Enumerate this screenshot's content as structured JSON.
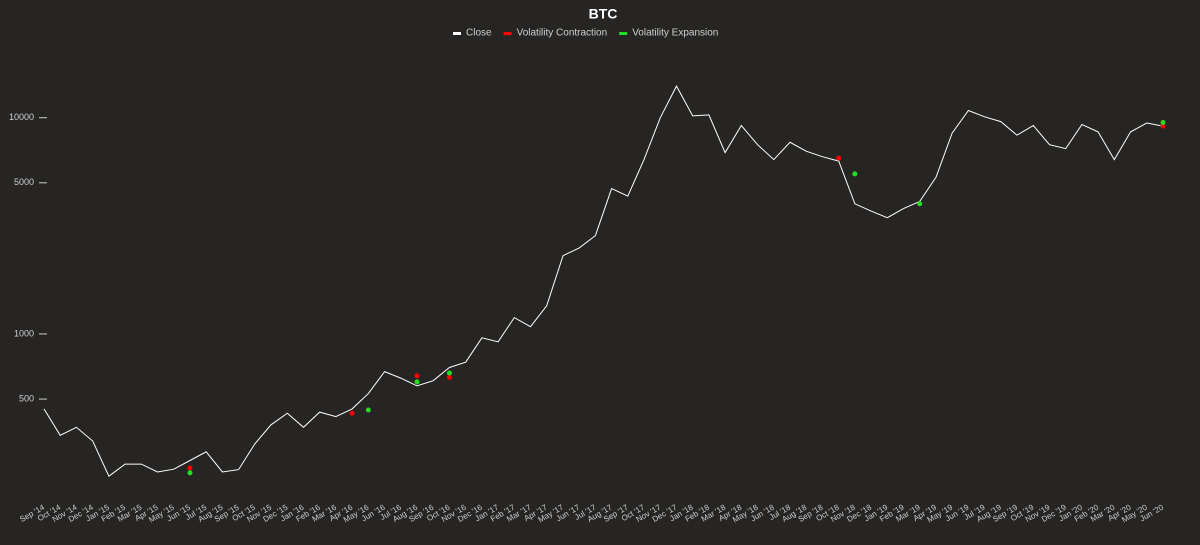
{
  "chart_data": {
    "type": "line",
    "title": "BTC",
    "yscale": "log",
    "ylim": [
      180,
      19500
    ],
    "yticks": [
      500,
      1000,
      5000,
      10000
    ],
    "legend": "top",
    "categories": [
      "Sep '14",
      "Oct '14",
      "Nov '14",
      "Dec '14",
      "Jan '15",
      "Feb '15",
      "Mar '15",
      "Apr '15",
      "May '15",
      "Jun '15",
      "Jul '15",
      "Aug '15",
      "Sep '15",
      "Oct '15",
      "Nov '15",
      "Dec '15",
      "Jan '16",
      "Feb '16",
      "Mar '16",
      "Apr '16",
      "May '16",
      "Jun '16",
      "Jul '16",
      "Aug '16",
      "Sep '16",
      "Oct '16",
      "Nov '16",
      "Dec '16",
      "Jan '17",
      "Feb '17",
      "Mar '17",
      "Apr '17",
      "May '17",
      "Jun '17",
      "Jul '17",
      "Aug '17",
      "Sep '17",
      "Oct '17",
      "Nov '17",
      "Dec '17",
      "Jan '18",
      "Feb '18",
      "Mar '18",
      "Apr '18",
      "May '18",
      "Jun '18",
      "Jul '18",
      "Aug '18",
      "Sep '18",
      "Oct '18",
      "Nov '18",
      "Dec '18",
      "Jan '19",
      "Feb '19",
      "Mar '19",
      "Apr '19",
      "May '19",
      "Jun '19",
      "Jul '19",
      "Aug '19",
      "Sep '19",
      "Oct '19",
      "Nov '19",
      "Dec '19",
      "Jan '20",
      "Feb '20",
      "Mar '20",
      "Apr '20",
      "May '20",
      "Jun '20"
    ],
    "series": [
      {
        "name": "Close",
        "color": "#ffffff",
        "style": "line",
        "values": [
          450,
          340,
          370,
          320,
          220,
          250,
          250,
          230,
          237,
          260,
          285,
          230,
          236,
          310,
          380,
          430,
          370,
          435,
          415,
          450,
          530,
          670,
          625,
          575,
          608,
          700,
          740,
          960,
          920,
          1190,
          1080,
          1350,
          2300,
          2500,
          2850,
          4700,
          4340,
          6400,
          10000,
          14000,
          10200,
          10300,
          6900,
          9200,
          7500,
          6400,
          7700,
          7000,
          6600,
          6300,
          4000,
          3700,
          3450,
          3800,
          4100,
          5300,
          8500,
          10800,
          10100,
          9600,
          8300,
          9200,
          7500,
          7200,
          9300,
          8600,
          6400,
          8600,
          9450,
          9150
        ]
      },
      {
        "name": "Volatility Contraction",
        "color": "#ff0000",
        "style": "markers",
        "values": [
          null,
          null,
          null,
          null,
          null,
          null,
          null,
          null,
          null,
          240,
          null,
          null,
          null,
          null,
          null,
          null,
          null,
          null,
          null,
          430,
          null,
          null,
          null,
          640,
          null,
          630,
          null,
          null,
          null,
          null,
          null,
          null,
          null,
          null,
          null,
          null,
          null,
          null,
          null,
          null,
          null,
          null,
          null,
          null,
          null,
          null,
          null,
          null,
          null,
          6500,
          null,
          null,
          null,
          null,
          null,
          null,
          null,
          null,
          null,
          null,
          null,
          null,
          null,
          null,
          null,
          null,
          null,
          null,
          null,
          9150
        ]
      },
      {
        "name": "Volatility Expansion",
        "color": "#22dd22",
        "style": "markers",
        "values": [
          null,
          null,
          null,
          null,
          null,
          null,
          null,
          null,
          null,
          228,
          null,
          null,
          null,
          null,
          null,
          null,
          null,
          null,
          null,
          null,
          445,
          null,
          null,
          600,
          null,
          660,
          null,
          null,
          null,
          null,
          null,
          null,
          null,
          null,
          null,
          null,
          null,
          null,
          null,
          null,
          null,
          null,
          null,
          null,
          null,
          null,
          null,
          null,
          null,
          null,
          5500,
          null,
          null,
          null,
          4000,
          null,
          null,
          null,
          null,
          null,
          null,
          null,
          null,
          null,
          null,
          null,
          null,
          null,
          null,
          9500
        ]
      }
    ]
  }
}
